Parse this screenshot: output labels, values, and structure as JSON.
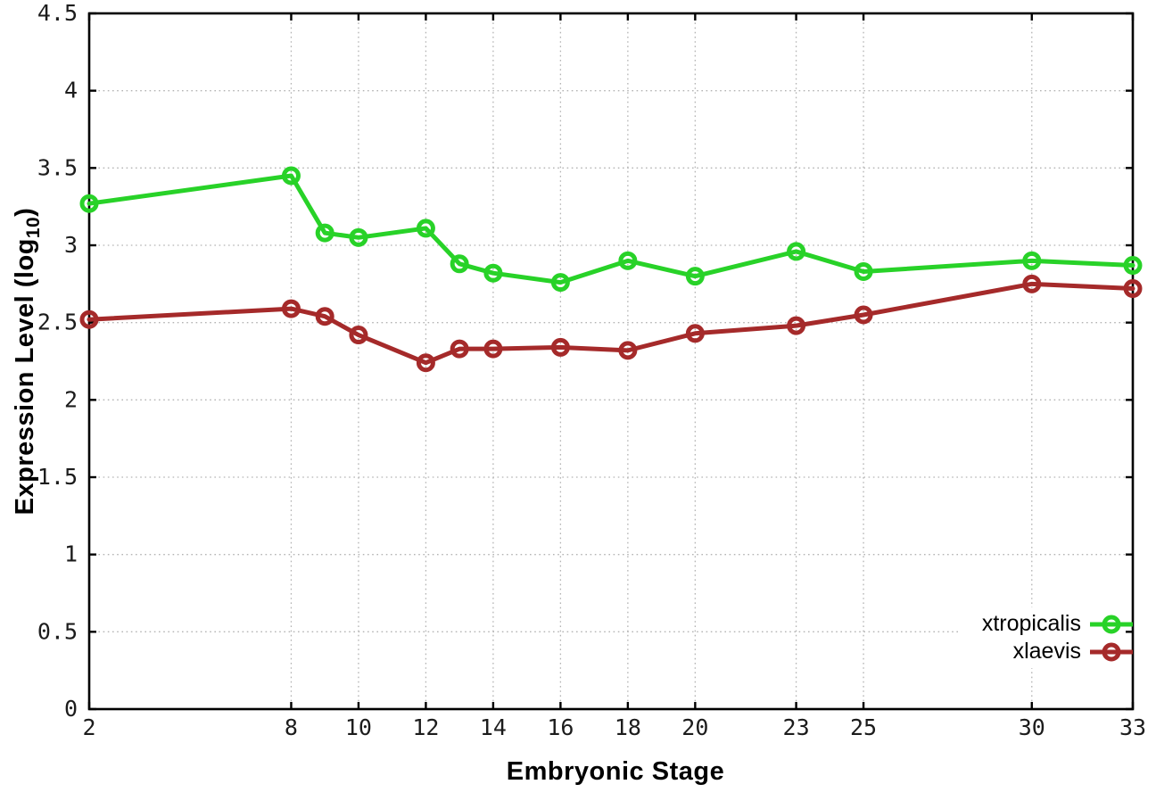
{
  "chart_data": {
    "type": "line",
    "title": "",
    "xlabel": "Embryonic Stage",
    "ylabel": "Expression Level (log10)",
    "ylabel_parts": {
      "prefix": "Expression Level (log",
      "sub": "10",
      "suffix": ")"
    },
    "x": [
      2,
      8,
      9,
      10,
      12,
      13,
      14,
      16,
      18,
      20,
      23,
      25,
      30,
      33
    ],
    "series": [
      {
        "name": "xtropicalis",
        "color": "#28d228",
        "marker": "open-circle",
        "values": [
          3.27,
          3.45,
          3.08,
          3.05,
          3.11,
          2.88,
          2.82,
          2.76,
          2.9,
          2.8,
          2.96,
          2.83,
          2.9,
          2.87
        ]
      },
      {
        "name": "xlaevis",
        "color": "#a52a2a",
        "marker": "open-circle",
        "values": [
          2.52,
          2.59,
          2.54,
          2.42,
          2.24,
          2.33,
          2.33,
          2.34,
          2.32,
          2.43,
          2.48,
          2.55,
          2.75,
          2.72
        ]
      }
    ],
    "x_ticks": [
      "2",
      "8",
      "10",
      "12",
      "14",
      "16",
      "18",
      "20",
      "23",
      "25",
      "30",
      "33"
    ],
    "y_ticks": [
      "0",
      "0.5",
      "1",
      "1.5",
      "2",
      "2.5",
      "3",
      "3.5",
      "4",
      "4.5"
    ],
    "xlim": [
      2,
      33
    ],
    "ylim": [
      0,
      4.5
    ],
    "grid": true,
    "grid_style": "dotted",
    "legend_position": "inside-bottom-right",
    "colors": {
      "background": "#ffffff",
      "axis": "#000000",
      "tick_label": "#1c1c1c",
      "grid": "#b3b3b3"
    }
  }
}
